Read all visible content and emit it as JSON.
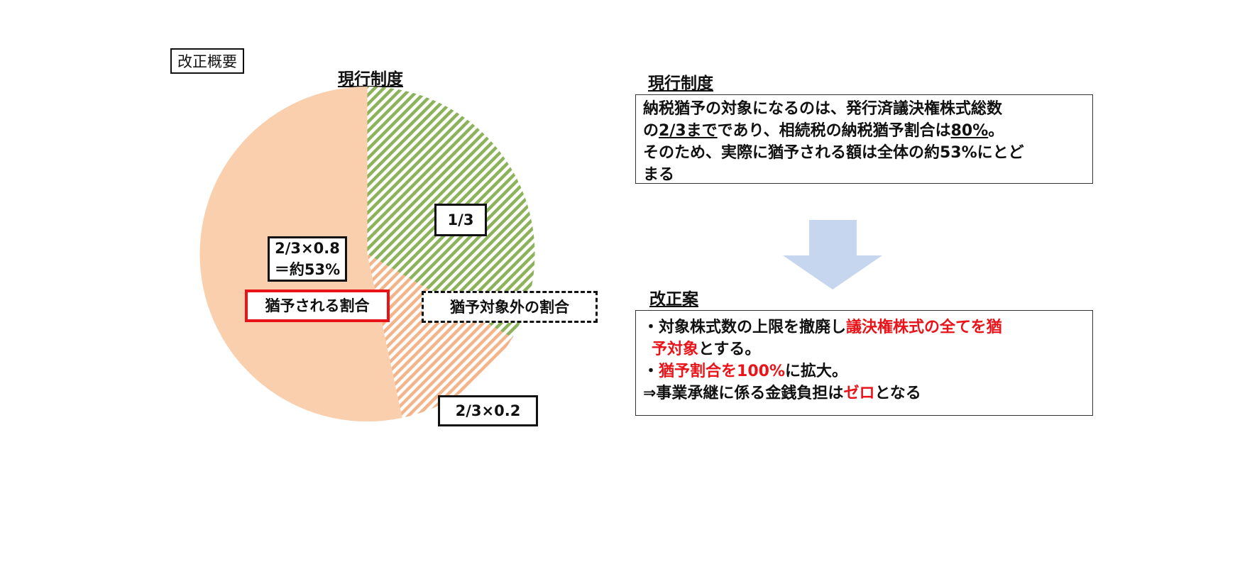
{
  "tag": "改正概要",
  "chart_data": {
    "type": "pie",
    "title": "現行制度",
    "start_angle": "12 o'clock, clockwise",
    "slices": [
      {
        "label": "1/3",
        "value": 33.33,
        "fill": "#8db35a",
        "pattern": "diagonal-hatch"
      },
      {
        "label": "2/3×0.2",
        "value": 13.33,
        "fill": "#f4b48a",
        "pattern": "diagonal-hatch"
      },
      {
        "label": "2/3×0.8\n＝約53%",
        "value": 53.33,
        "fill": "#f9cfae",
        "pattern": "solid"
      }
    ],
    "annotations": [
      {
        "text": "猶予される割合",
        "border": "#e8141a"
      },
      {
        "text": "猶予対象外の割合",
        "border": "dash-dot"
      }
    ]
  },
  "labels": {
    "s1": "1/3",
    "s2": "2/3×0.2",
    "s3a": "2/3×0.8",
    "s3b": "＝約53%",
    "granted": "猶予される割合",
    "excluded": "猶予対象外の割合"
  },
  "current": {
    "heading": "現行制度",
    "l1": "納税猶予の対象になるのは、発行済議決権株式総数",
    "l2a": "の",
    "l2b": "2/3まで",
    "l2c": "であり、相続税の納税猶予割合は",
    "l2d": "80%",
    "l2e": "。",
    "l3": "そのため、実際に猶予される額は全体の約53%にとど",
    "l4": "まる"
  },
  "arrow_color": "#c5d6ee",
  "proposal": {
    "heading": "改正案",
    "l1a": "・対象株式数の上限を撤廃し",
    "l1b": "議決権株式の全てを猶",
    "l2a": "予対象",
    "l2b": "とする。",
    "l3a": "・",
    "l3b": "猶予割合を100%",
    "l3c": "に拡大。",
    "l4a": "⇒事業承継に係る金銭負担は",
    "l4b": "ゼロ",
    "l4c": "となる"
  }
}
